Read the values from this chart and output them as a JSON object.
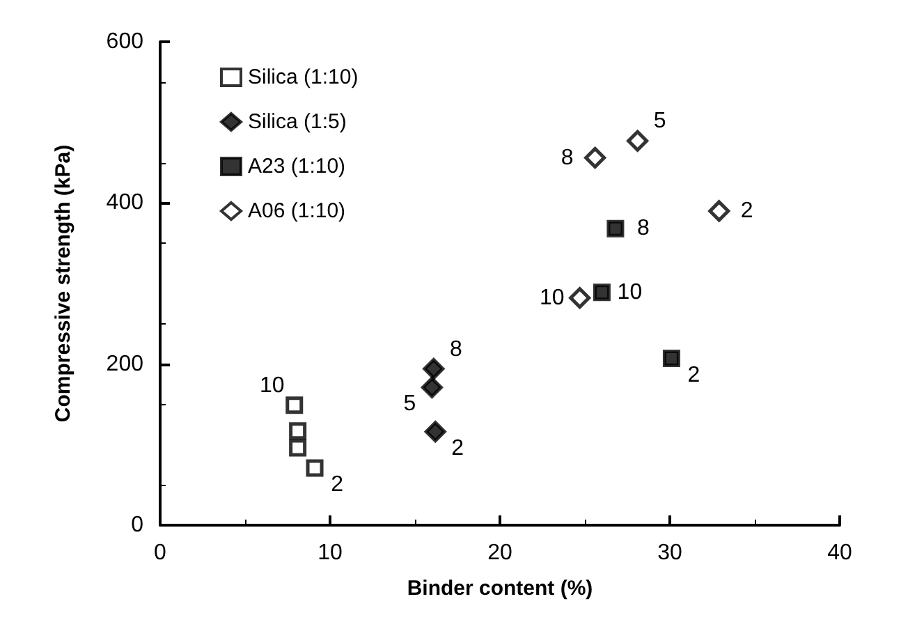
{
  "chart_data": {
    "type": "scatter",
    "xlabel": "Binder content (%)",
    "ylabel": "Compressive strength (kPa)",
    "xlim": [
      0,
      40
    ],
    "xticks": [
      0,
      10,
      20,
      30,
      40
    ],
    "ylim": [
      0,
      600
    ],
    "yticks": [
      0,
      200,
      400,
      600
    ],
    "grid": false,
    "legend": "top left",
    "series": [
      {
        "name": "Silica (1:10)",
        "color": "#ffffff",
        "marker": "square",
        "x": [
          7.9,
          8.1,
          8.1,
          9.1
        ],
        "values": [
          149,
          117,
          96,
          71
        ]
      },
      {
        "name": "Silica (1:5)",
        "color": "#000000",
        "marker": "diamond",
        "x": [
          16.1,
          16.0,
          16.2
        ],
        "values": [
          194,
          171,
          116
        ]
      },
      {
        "name": "A23 (1:10)",
        "color": "#000000",
        "marker": "square",
        "x": [
          26.8,
          26.0,
          30.1
        ],
        "values": [
          368,
          289,
          207
        ]
      },
      {
        "name": "A06 (1:10)",
        "color": "#ffffff",
        "marker": "diamond",
        "x": [
          25.6,
          28.1,
          32.9,
          24.7
        ],
        "values": [
          456,
          477,
          390,
          282
        ]
      }
    ],
    "annotations": [
      {
        "text": "10",
        "x": 7.9,
        "y": 149
      },
      {
        "text": "2",
        "x": 9.1,
        "y": 71
      },
      {
        "text": "8",
        "x": 16.1,
        "y": 194
      },
      {
        "text": "5",
        "x": 16.0,
        "y": 171
      },
      {
        "text": "2",
        "x": 16.2,
        "y": 116
      },
      {
        "text": "8",
        "x": 26.8,
        "y": 368
      },
      {
        "text": "10",
        "x": 26.0,
        "y": 289
      },
      {
        "text": "2",
        "x": 30.1,
        "y": 207
      },
      {
        "text": "8",
        "x": 25.6,
        "y": 456
      },
      {
        "text": "5",
        "x": 28.1,
        "y": 477
      },
      {
        "text": "2",
        "x": 32.9,
        "y": 390
      },
      {
        "text": "10",
        "x": 24.7,
        "y": 282
      }
    ]
  }
}
